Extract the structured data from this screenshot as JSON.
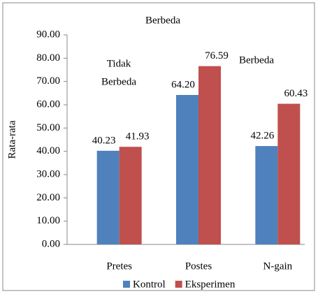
{
  "chart_data": {
    "type": "bar",
    "title": "Berbeda",
    "y_label": "Rata-rata",
    "categories": [
      "Pretes",
      "Postes",
      "N-gain"
    ],
    "series": [
      {
        "name": "Kontrol",
        "color": "#4f81bd",
        "values": [
          40.23,
          64.2,
          42.26
        ],
        "value_labels": [
          "40.23",
          "64.20",
          "42.26"
        ]
      },
      {
        "name": "Eksperimen",
        "color": "#c0504d",
        "values": [
          41.93,
          76.59,
          60.43
        ],
        "value_labels": [
          "41.93",
          "76.59",
          "60.43"
        ]
      }
    ],
    "annotations": [
      {
        "lines": [
          "Tidak",
          "Berbeda"
        ]
      },
      {
        "lines": [
          "Berbeda"
        ]
      }
    ],
    "ylim": [
      0,
      90
    ],
    "yticks": [
      {
        "value": 0,
        "label": "0.00"
      },
      {
        "value": 10,
        "label": "10.00"
      },
      {
        "value": 20,
        "label": "20.00"
      },
      {
        "value": 30,
        "label": "30.00"
      },
      {
        "value": 40,
        "label": "40.00"
      },
      {
        "value": 50,
        "label": "50.00"
      },
      {
        "value": 60,
        "label": "60.00"
      },
      {
        "value": 70,
        "label": "70.00"
      },
      {
        "value": 80,
        "label": "80.00"
      },
      {
        "value": 90,
        "label": "90.00"
      }
    ],
    "legend": "bottom"
  }
}
